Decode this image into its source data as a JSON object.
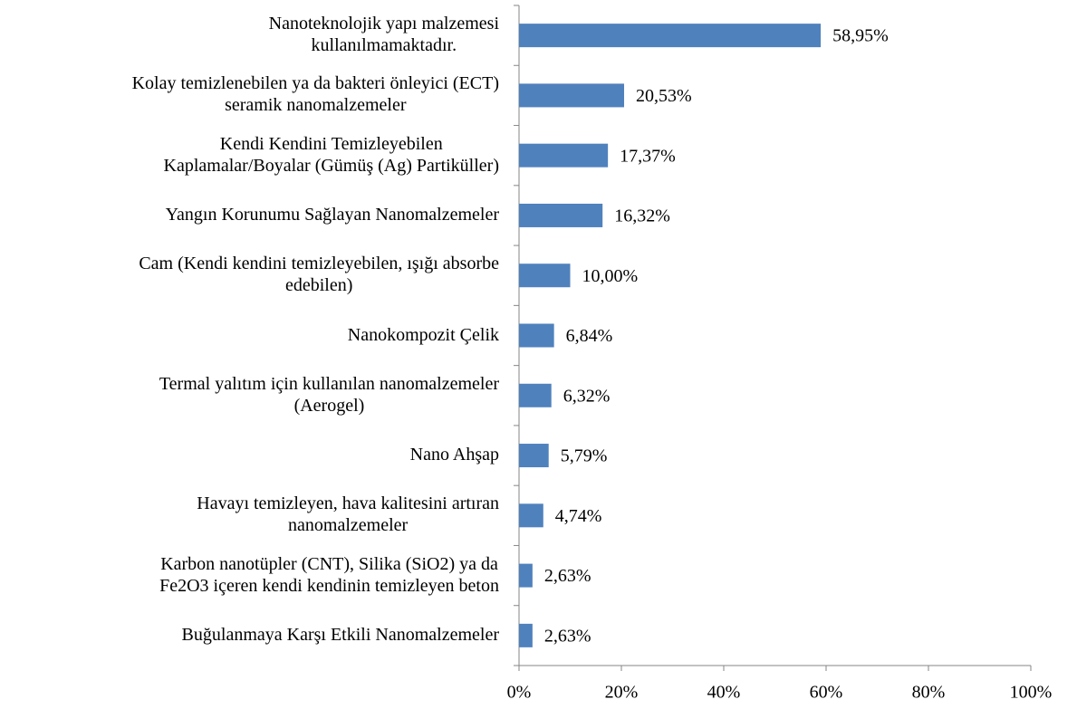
{
  "chart_data": {
    "type": "bar",
    "orientation": "horizontal",
    "categories": [
      "Nanoteknolojik yapı malzemesi\nkullanılmamaktadır.",
      "Kolay temizlenebilen ya da bakteri önleyici (ECT)\nseramik nanomalzemeler",
      "Kendi Kendini Temizleyebilen\nKaplamalar/Boyalar (Gümüş (Ag) Partiküller)",
      "Yangın Korunumu Sağlayan Nanomalzemeler",
      "Cam (Kendi kendini temizleyebilen, ışığı absorbe\nedebilen)",
      "Nanokompozit Çelik",
      "Termal yalıtım için kullanılan nanomalzemeler\n(Aerogel)",
      "Nano Ahşap",
      "Havayı temizleyen, hava kalitesini artıran\nnanomalzemeler",
      "Karbon nanotüpler (CNT),  Silika (SiO2) ya da\nFe2O3 içeren kendi kendinin temizleyen beton",
      "Buğulanmaya Karşı Etkili Nanomalzemeler"
    ],
    "values": [
      58.95,
      20.53,
      17.37,
      16.32,
      10.0,
      6.84,
      6.32,
      5.79,
      4.74,
      2.63,
      2.63
    ],
    "value_labels": [
      "58,95%",
      "20,53%",
      "17,37%",
      "16,32%",
      "10,00%",
      "6,84%",
      "6,32%",
      "5,79%",
      "4,74%",
      "2,63%",
      "2,63%"
    ],
    "color": "#4f81bd",
    "xlim": [
      0,
      100
    ],
    "xticks": [
      {
        "value": 0,
        "label": "0%"
      },
      {
        "value": 20,
        "label": "20%"
      },
      {
        "value": 40,
        "label": "40%"
      },
      {
        "value": 60,
        "label": "60%"
      },
      {
        "value": 80,
        "label": "80%"
      },
      {
        "value": 100,
        "label": "100%"
      }
    ]
  }
}
